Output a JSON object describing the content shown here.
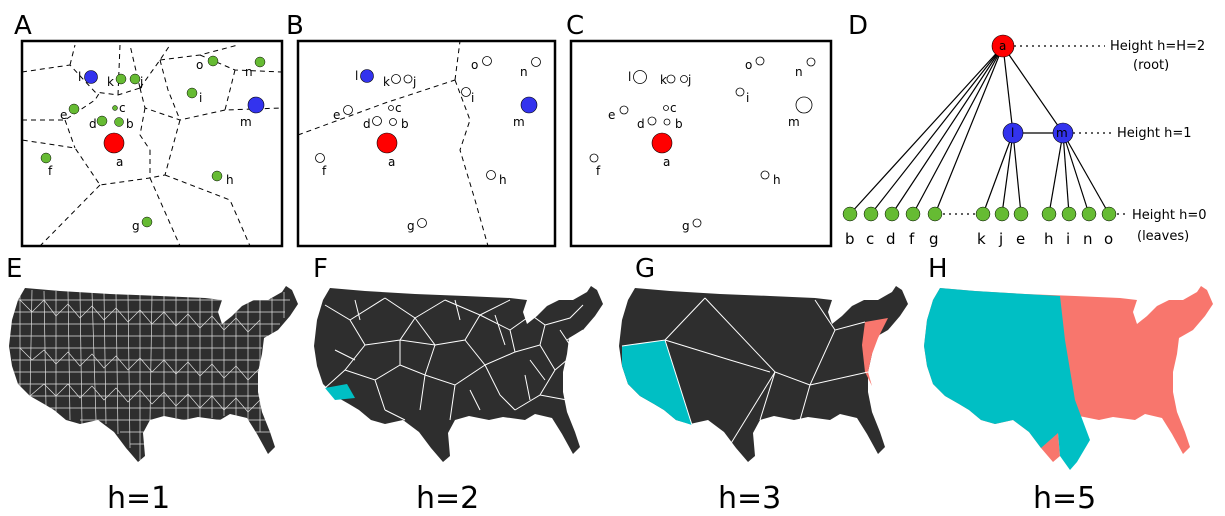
{
  "panels": {
    "A": "A",
    "B": "B",
    "C": "C",
    "D": "D",
    "E": "E",
    "F": "F",
    "G": "G",
    "H": "H"
  },
  "points": {
    "a": "a",
    "b": "b",
    "c": "c",
    "d": "d",
    "e": "e",
    "f": "f",
    "g": "g",
    "h": "h",
    "i": "i",
    "j": "j",
    "k": "k",
    "l": "l",
    "m": "m",
    "n": "n",
    "o": "o"
  },
  "tree": {
    "root_label": "a",
    "mid_labels": [
      "l",
      "m"
    ],
    "leaf_labels": [
      "b",
      "c",
      "d",
      "f",
      "g",
      "k",
      "j",
      "e",
      "h",
      "i",
      "n",
      "o"
    ],
    "height_root": "Height h=H=2",
    "root_note": "(root)",
    "height_mid": "Height h=1",
    "height_leaf": "Height h=0",
    "leaf_note": "(leaves)"
  },
  "maps": {
    "E": "h=1",
    "F": "h=2",
    "G": "h=3",
    "H": "h=5"
  },
  "colors": {
    "root": "#ff0000",
    "mid": "#3333ee",
    "leaf": "#66bb33",
    "map_dark": "#2e2e2e",
    "teal": "#00bfc4",
    "salmon": "#f8766d"
  }
}
